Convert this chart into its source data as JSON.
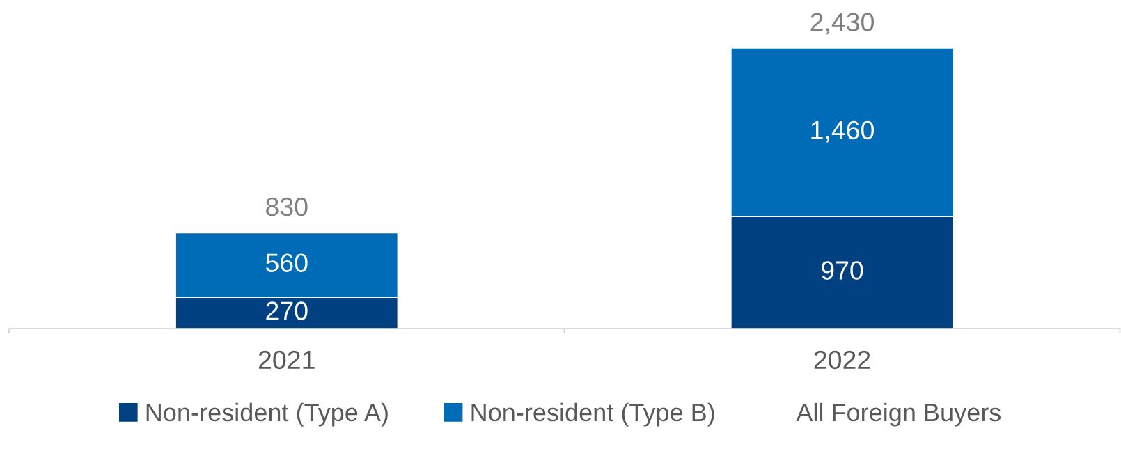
{
  "chart_data": {
    "type": "bar",
    "stacked": true,
    "categories": [
      "2021",
      "2022"
    ],
    "series": [
      {
        "name": "Non-resident (Type A)",
        "color": "#024181",
        "values": [
          270,
          970
        ],
        "value_labels": [
          "270",
          "970"
        ]
      },
      {
        "name": "Non-resident (Type B)",
        "color": "#006bb6",
        "values": [
          560,
          1460
        ],
        "value_labels": [
          "560",
          "1,460"
        ]
      }
    ],
    "totals": [
      "830",
      "2,430"
    ],
    "annotations": [
      "All Foreign Buyers"
    ],
    "legend": "bottom",
    "grid": false
  }
}
